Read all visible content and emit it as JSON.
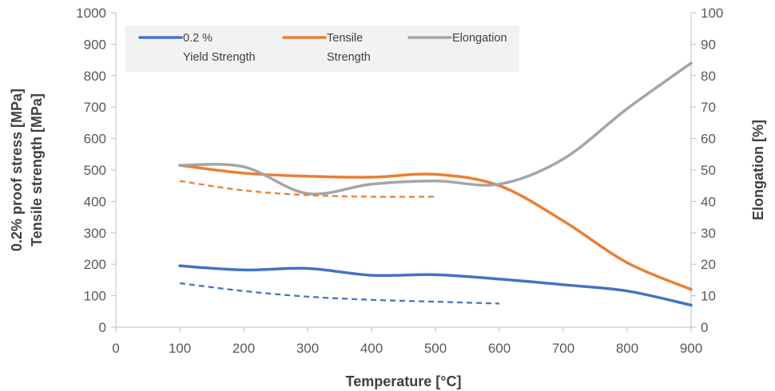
{
  "chart_data": {
    "type": "line",
    "xlabel": "Temperature [°C]",
    "ylabel_lines": [
      "0.2% proof stress [MPa]",
      "Tensile strength [MPa]"
    ],
    "y2label": "Elongation [%]",
    "x_ticks": [
      0,
      100,
      200,
      300,
      400,
      500,
      600,
      700,
      800,
      900
    ],
    "y_ticks": [
      0,
      100,
      200,
      300,
      400,
      500,
      600,
      700,
      800,
      900,
      1000
    ],
    "y2_ticks": [
      0,
      10,
      20,
      30,
      40,
      50,
      60,
      70,
      80,
      90,
      100
    ],
    "xlim": [
      0,
      900
    ],
    "ylim": [
      0,
      1000
    ],
    "y2lim": [
      0,
      100
    ],
    "grid": "none",
    "legend_position": "top-left",
    "legend": [
      {
        "label_lines": [
          "0.2 %",
          "Yield Strength"
        ],
        "color": "#4472C4"
      },
      {
        "label_lines": [
          "Tensile",
          "Strength"
        ],
        "color": "#ED7D31"
      },
      {
        "label_lines": [
          "Elongation"
        ],
        "color": "#A5A5A5"
      }
    ],
    "series": [
      {
        "name": "0.2 % Yield Strength",
        "axis": "left",
        "color": "#4472C4",
        "dashed": false,
        "x": [
          100,
          200,
          300,
          400,
          500,
          600,
          700,
          800,
          900
        ],
        "values": [
          195,
          182,
          187,
          165,
          167,
          153,
          135,
          115,
          70
        ]
      },
      {
        "name": "Tensile Strength",
        "axis": "left",
        "color": "#ED7D31",
        "dashed": false,
        "x": [
          100,
          200,
          300,
          400,
          500,
          600,
          700,
          800,
          900
        ],
        "values": [
          515,
          490,
          480,
          477,
          486,
          450,
          338,
          205,
          120
        ]
      },
      {
        "name": "Elongation",
        "axis": "right",
        "color": "#A5A5A5",
        "dashed": false,
        "x": [
          100,
          200,
          300,
          400,
          500,
          600,
          700,
          800,
          900
        ],
        "values": [
          51.5,
          51,
          42.5,
          45.5,
          46.5,
          45.5,
          53.5,
          69.5,
          84
        ]
      },
      {
        "axis": "left",
        "color": "#4472C4",
        "dashed": true,
        "x": [
          100,
          200,
          300,
          400,
          500,
          600
        ],
        "values": [
          140,
          115,
          97,
          87,
          81,
          75
        ]
      },
      {
        "axis": "left",
        "color": "#ED7D31",
        "dashed": true,
        "x": [
          100,
          200,
          300,
          400,
          500
        ],
        "values": [
          465,
          435,
          420,
          415,
          415
        ]
      }
    ]
  }
}
